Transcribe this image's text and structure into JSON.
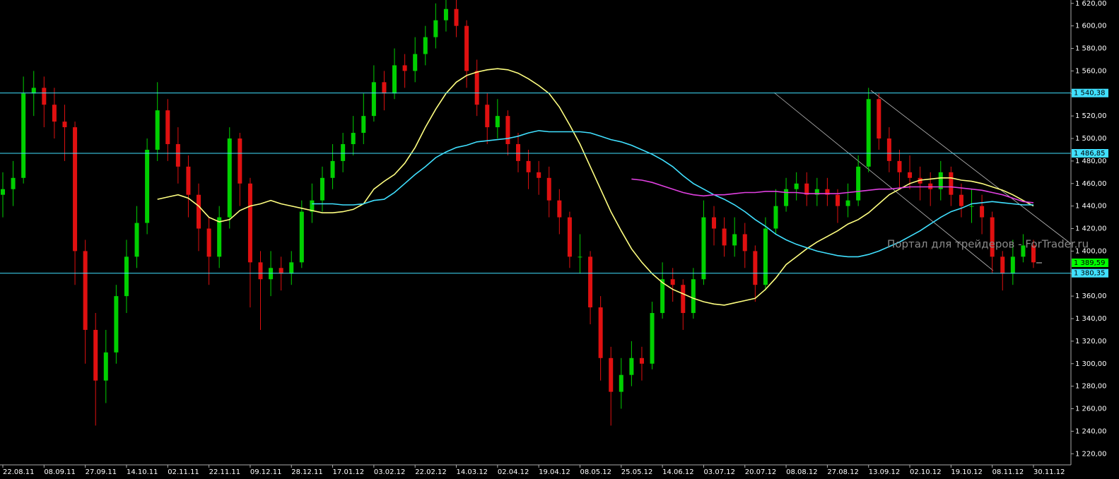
{
  "chart_data": {
    "type": "candlestick",
    "watermark": "Портал для трейдеров - ForTrader.ru",
    "categories": [
      "22.08.11",
      null,
      null,
      null,
      "08.09.11",
      null,
      null,
      null,
      "27.09.11",
      null,
      null,
      null,
      "14.10.11",
      null,
      null,
      null,
      "02.11.11",
      null,
      null,
      null,
      "22.11.11",
      null,
      null,
      null,
      "09.12.11",
      null,
      null,
      null,
      "28.12.11",
      null,
      null,
      null,
      "17.01.12",
      null,
      null,
      null,
      "03.02.12",
      null,
      null,
      null,
      "22.02.12",
      null,
      null,
      null,
      "14.03.12",
      null,
      null,
      null,
      "02.04.12",
      null,
      null,
      null,
      "19.04.12",
      null,
      null,
      null,
      "08.05.12",
      null,
      null,
      null,
      "25.05.12",
      null,
      null,
      null,
      "14.06.12",
      null,
      null,
      null,
      "03.07.12",
      null,
      null,
      null,
      "20.07.12",
      null,
      null,
      null,
      "08.08.12",
      null,
      null,
      null,
      "27.08.12",
      null,
      null,
      null,
      "13.09.12",
      null,
      null,
      null,
      "02.10.12",
      null,
      null,
      null,
      "19.10.12",
      null,
      null,
      null,
      "08.11.12",
      null,
      null,
      null,
      "30.11.12"
    ],
    "open": [
      1450,
      1455,
      1465,
      1540,
      1545,
      1530,
      1515,
      1510,
      1400,
      1330,
      1285,
      1310,
      1360,
      1395,
      1425,
      1490,
      1525,
      1495,
      1475,
      1450,
      1420,
      1395,
      1430,
      1500,
      1460,
      1390,
      1375,
      1385,
      1380,
      1390,
      1435,
      1445,
      1465,
      1480,
      1495,
      1505,
      1520,
      1550,
      1540,
      1565,
      1560,
      1575,
      1590,
      1605,
      1615,
      1600,
      1560,
      1530,
      1510,
      1520,
      1495,
      1480,
      1470,
      1465,
      1445,
      1430,
      1395,
      1395,
      1350,
      1305,
      1275,
      1290,
      1305,
      1300,
      1345,
      1375,
      1370,
      1345,
      1375,
      1430,
      1420,
      1405,
      1415,
      1400,
      1370,
      1420,
      1440,
      1455,
      1460,
      1450,
      1455,
      1450,
      1440,
      1445,
      1475,
      1535,
      1500,
      1480,
      1470,
      1465,
      1460,
      1455,
      1470,
      1450,
      1440,
      1440,
      1430,
      1395,
      1380,
      1395,
      1405
    ],
    "high": [
      1470,
      1480,
      1555,
      1560,
      1555,
      1545,
      1530,
      1515,
      1410,
      1345,
      1330,
      1370,
      1410,
      1440,
      1500,
      1550,
      1535,
      1510,
      1485,
      1460,
      1430,
      1440,
      1510,
      1505,
      1465,
      1400,
      1400,
      1395,
      1400,
      1445,
      1460,
      1475,
      1495,
      1505,
      1520,
      1540,
      1565,
      1560,
      1580,
      1575,
      1590,
      1600,
      1620,
      1625,
      1625,
      1605,
      1570,
      1540,
      1535,
      1525,
      1505,
      1490,
      1480,
      1475,
      1455,
      1435,
      1415,
      1400,
      1360,
      1315,
      1305,
      1320,
      1315,
      1355,
      1390,
      1385,
      1375,
      1385,
      1445,
      1440,
      1430,
      1430,
      1425,
      1405,
      1430,
      1455,
      1465,
      1470,
      1470,
      1465,
      1465,
      1455,
      1460,
      1485,
      1545,
      1540,
      1510,
      1490,
      1485,
      1475,
      1470,
      1480,
      1475,
      1460,
      1455,
      1450,
      1435,
      1400,
      1410,
      1415,
      1410
    ],
    "low": [
      1430,
      1440,
      1460,
      1520,
      1510,
      1500,
      1480,
      1370,
      1300,
      1245,
      1265,
      1300,
      1345,
      1385,
      1415,
      1480,
      1480,
      1460,
      1430,
      1400,
      1370,
      1385,
      1420,
      1440,
      1350,
      1330,
      1360,
      1365,
      1370,
      1385,
      1425,
      1435,
      1455,
      1470,
      1485,
      1495,
      1515,
      1525,
      1535,
      1545,
      1550,
      1565,
      1580,
      1595,
      1590,
      1545,
      1520,
      1495,
      1500,
      1485,
      1470,
      1455,
      1450,
      1430,
      1415,
      1385,
      1380,
      1335,
      1285,
      1245,
      1260,
      1280,
      1285,
      1295,
      1340,
      1355,
      1330,
      1340,
      1370,
      1405,
      1395,
      1395,
      1385,
      1355,
      1365,
      1415,
      1435,
      1445,
      1440,
      1440,
      1440,
      1425,
      1430,
      1440,
      1470,
      1490,
      1470,
      1455,
      1455,
      1445,
      1440,
      1445,
      1440,
      1430,
      1425,
      1415,
      1380,
      1365,
      1370,
      1390,
      1385
    ],
    "close": [
      1455,
      1465,
      1540,
      1545,
      1530,
      1515,
      1510,
      1400,
      1330,
      1285,
      1310,
      1360,
      1395,
      1425,
      1490,
      1525,
      1495,
      1475,
      1450,
      1420,
      1395,
      1430,
      1500,
      1460,
      1390,
      1375,
      1385,
      1380,
      1390,
      1435,
      1445,
      1465,
      1480,
      1495,
      1505,
      1520,
      1550,
      1540,
      1565,
      1560,
      1575,
      1590,
      1605,
      1615,
      1600,
      1560,
      1530,
      1510,
      1520,
      1495,
      1480,
      1470,
      1465,
      1445,
      1430,
      1395,
      1395,
      1350,
      1305,
      1275,
      1290,
      1305,
      1300,
      1345,
      1375,
      1370,
      1345,
      1375,
      1430,
      1420,
      1405,
      1415,
      1400,
      1370,
      1420,
      1440,
      1455,
      1460,
      1450,
      1455,
      1450,
      1440,
      1445,
      1475,
      1535,
      1500,
      1480,
      1470,
      1465,
      1460,
      1455,
      1470,
      1450,
      1440,
      1440,
      1430,
      1395,
      1380,
      1395,
      1405,
      1390
    ],
    "up_color": "#00d000",
    "down_color": "#e01010",
    "lines": [
      {
        "color": "#ffff80",
        "values": [
          null,
          null,
          null,
          null,
          null,
          null,
          null,
          null,
          null,
          null,
          null,
          null,
          null,
          null,
          null,
          1446,
          1448,
          1450,
          1447,
          1440,
          1430,
          1426,
          1428,
          1436,
          1440,
          1442,
          1445,
          1442,
          1440,
          1438,
          1436,
          1434,
          1434,
          1435,
          1437,
          1442,
          1455,
          1462,
          1468,
          1478,
          1492,
          1510,
          1526,
          1540,
          1550,
          1556,
          1559,
          1561,
          1562,
          1561,
          1558,
          1553,
          1547,
          1540,
          1528,
          1512,
          1495,
          1475,
          1455,
          1435,
          1418,
          1402,
          1390,
          1380,
          1372,
          1366,
          1362,
          1358,
          1355,
          1353,
          1352,
          1354,
          1356,
          1358,
          1366,
          1376,
          1388,
          1395,
          1402,
          1408,
          1413,
          1418,
          1424,
          1428,
          1434,
          1442,
          1450,
          1455,
          1460,
          1463,
          1464,
          1465,
          1465,
          1463,
          1462,
          1460,
          1457,
          1454,
          1450,
          1445,
          1440
        ]
      },
      {
        "color": "#40e0ff",
        "values": [
          null,
          null,
          null,
          null,
          null,
          null,
          null,
          null,
          null,
          null,
          null,
          null,
          null,
          null,
          null,
          null,
          null,
          null,
          null,
          null,
          null,
          null,
          null,
          null,
          null,
          null,
          null,
          null,
          null,
          null,
          1442,
          1442,
          1442,
          1441,
          1441,
          1442,
          1445,
          1446,
          1452,
          1460,
          1468,
          1475,
          1483,
          1488,
          1492,
          1494,
          1497,
          1498,
          1499,
          1500,
          1502,
          1505,
          1507,
          1506,
          1506,
          1506,
          1506,
          1505,
          1502,
          1499,
          1497,
          1494,
          1490,
          1486,
          1481,
          1475,
          1467,
          1460,
          1455,
          1450,
          1446,
          1441,
          1435,
          1428,
          1422,
          1415,
          1410,
          1406,
          1403,
          1400,
          1398,
          1396,
          1395,
          1395,
          1397,
          1400,
          1404,
          1408,
          1413,
          1418,
          1424,
          1430,
          1435,
          1438,
          1442,
          1443,
          1444,
          1443,
          1442,
          1441,
          1441
        ]
      },
      {
        "color": "#e040e0",
        "values": [
          null,
          null,
          null,
          null,
          null,
          null,
          null,
          null,
          null,
          null,
          null,
          null,
          null,
          null,
          null,
          null,
          null,
          null,
          null,
          null,
          null,
          null,
          null,
          null,
          null,
          null,
          null,
          null,
          null,
          null,
          null,
          null,
          null,
          null,
          null,
          null,
          null,
          null,
          null,
          null,
          null,
          null,
          null,
          null,
          null,
          null,
          null,
          null,
          null,
          null,
          null,
          null,
          null,
          null,
          null,
          null,
          null,
          null,
          null,
          null,
          null,
          1464,
          1463,
          1461,
          1458,
          1455,
          1452,
          1450,
          1449,
          1450,
          1450,
          1451,
          1452,
          1452,
          1453,
          1453,
          1452,
          1452,
          1451,
          1451,
          1451,
          1451,
          1452,
          1453,
          1454,
          1455,
          1455,
          1456,
          1457,
          1457,
          1457,
          1457,
          1457,
          1456,
          1455,
          1454,
          1452,
          1450,
          1447,
          1444,
          1443
        ]
      }
    ],
    "levels": [
      {
        "value": 1540.38,
        "label": "1 540,38"
      },
      {
        "value": 1486.85,
        "label": "1 486,85"
      },
      {
        "value": 1380.35,
        "label": "1 380,35"
      }
    ],
    "level_color": "#40e0ff",
    "last_price": {
      "value": 1389.59,
      "label": "1 389,59"
    },
    "last_price_color": "#00ff00",
    "ylim": [
      1212,
      1623
    ],
    "yticks": [
      {
        "value": 1220,
        "label": "1 220,00"
      },
      {
        "value": 1240,
        "label": "1 240,00"
      },
      {
        "value": 1260,
        "label": "1 260,00"
      },
      {
        "value": 1280,
        "label": "1 280,00"
      },
      {
        "value": 1300,
        "label": "1 300,00"
      },
      {
        "value": 1320,
        "label": "1 320,00"
      },
      {
        "value": 1340,
        "label": "1 340,00"
      },
      {
        "value": 1360,
        "label": "1 360,00"
      },
      {
        "value": 1380,
        "label": "1 380,00"
      },
      {
        "value": 1400,
        "label": "1 400,00"
      },
      {
        "value": 1420,
        "label": "1 420,00"
      },
      {
        "value": 1440,
        "label": "1 440,00"
      },
      {
        "value": 1460,
        "label": "1 460,00"
      },
      {
        "value": 1480,
        "label": "1 480,00"
      },
      {
        "value": 1500,
        "label": "1 500,00"
      },
      {
        "value": 1520,
        "label": "1 520,00"
      },
      {
        "value": 1540,
        "label": "1 540,00"
      },
      {
        "value": 1560,
        "label": "1 560,00"
      },
      {
        "value": 1580,
        "label": "1 580,00"
      },
      {
        "value": 1600,
        "label": "1 600,00"
      },
      {
        "value": 1620,
        "label": "1 620,00"
      }
    ]
  }
}
